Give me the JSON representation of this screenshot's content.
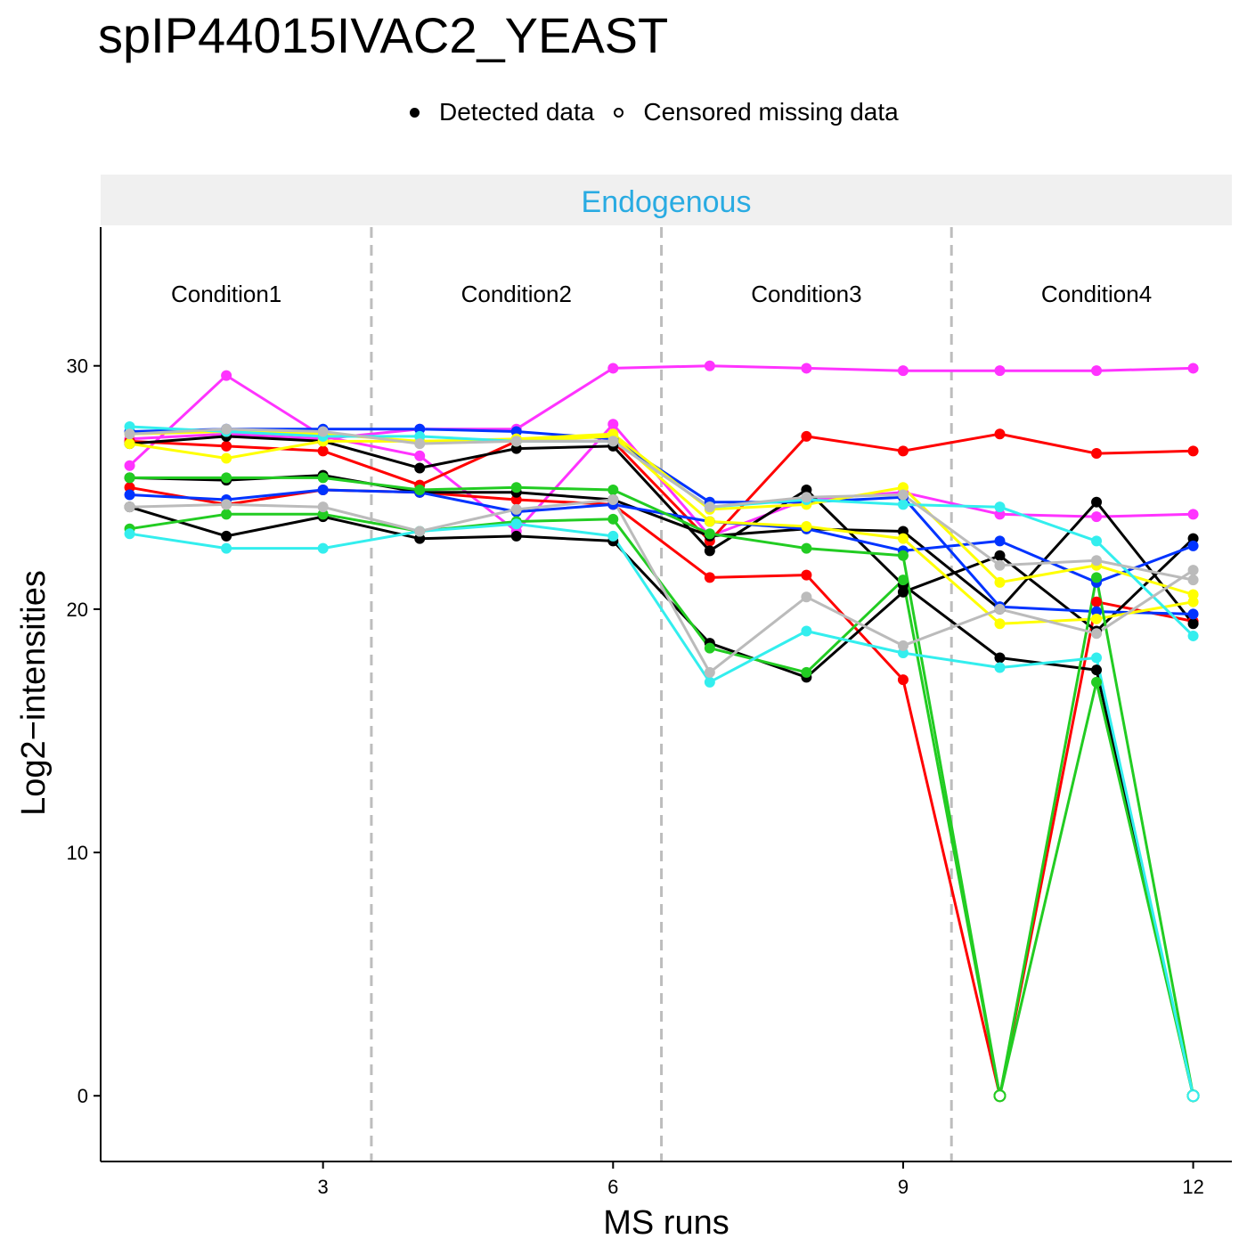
{
  "chart_data": {
    "type": "line",
    "title": "spIP44015IVAC2_YEAST",
    "legend": {
      "placement": "top",
      "detected_label": "Detected data",
      "censored_label": "Censored missing data"
    },
    "facet_label": "Endogenous",
    "facet_label_color": "#29abe2",
    "xlabel": "MS runs",
    "ylabel": "Log2−intensities",
    "xlim": [
      0.7,
      12.4
    ],
    "ylim": [
      -2.7,
      35.7
    ],
    "xticks": [
      3,
      6,
      9,
      12
    ],
    "yticks": [
      0,
      10,
      20,
      30
    ],
    "grid": false,
    "condition_separators": [
      3.5,
      6.5,
      9.5
    ],
    "conditions": [
      {
        "label": "Condition1",
        "x": 2.0
      },
      {
        "label": "Condition2",
        "x": 5.0
      },
      {
        "label": "Condition3",
        "x": 8.0
      },
      {
        "label": "Condition4",
        "x": 11.0
      }
    ],
    "x": [
      1,
      2,
      3,
      4,
      5,
      6,
      7,
      8,
      9,
      10,
      11,
      12
    ],
    "series": [
      {
        "color": "#ff33ff",
        "values": [
          25.9,
          29.6,
          27.1,
          26.3,
          23.2,
          27.6,
          23.0,
          24.5,
          24.8,
          23.9,
          23.8,
          23.9
        ],
        "censored": []
      },
      {
        "color": "#ff33ff",
        "values": [
          27.0,
          27.2,
          27.0,
          27.4,
          27.4,
          29.9,
          30.0,
          29.9,
          29.8,
          29.8,
          29.8,
          29.9
        ],
        "censored": []
      },
      {
        "color": "#ff0000",
        "values": [
          26.9,
          26.7,
          26.5,
          25.1,
          26.9,
          26.9,
          22.8,
          27.1,
          26.5,
          27.2,
          26.4,
          26.5
        ],
        "censored": []
      },
      {
        "color": "#ff0000",
        "values": [
          25.0,
          24.3,
          24.9,
          24.8,
          24.5,
          24.3,
          21.3,
          21.4,
          17.1,
          0.0,
          20.3,
          19.5
        ],
        "censored": [
          9
        ]
      },
      {
        "color": "#000000",
        "values": [
          26.8,
          27.1,
          26.9,
          25.8,
          26.6,
          26.7,
          22.4,
          24.9,
          21.0,
          18.0,
          17.5,
          0.0
        ],
        "censored": [
          11
        ]
      },
      {
        "color": "#000000",
        "values": [
          25.4,
          25.3,
          25.5,
          24.8,
          24.8,
          24.5,
          23.0,
          23.3,
          23.2,
          20.0,
          24.4,
          19.4
        ],
        "censored": []
      },
      {
        "color": "#000000",
        "values": [
          24.2,
          23.0,
          23.8,
          22.9,
          23.0,
          22.8,
          18.6,
          17.2,
          20.7,
          22.2,
          19.1,
          22.9
        ],
        "censored": []
      },
      {
        "color": "#0033ff",
        "values": [
          27.3,
          27.4,
          27.4,
          27.4,
          27.3,
          27.0,
          24.4,
          24.4,
          24.6,
          20.1,
          19.9,
          19.8
        ],
        "censored": []
      },
      {
        "color": "#0033ff",
        "values": [
          24.7,
          24.5,
          24.9,
          24.8,
          24.0,
          24.3,
          23.6,
          23.3,
          22.4,
          22.8,
          21.1,
          22.6
        ],
        "censored": []
      },
      {
        "color": "#ffff00",
        "values": [
          26.8,
          26.2,
          26.9,
          26.9,
          26.9,
          27.1,
          23.6,
          23.4,
          22.9,
          19.4,
          19.6,
          20.3
        ],
        "censored": []
      },
      {
        "color": "#ffff00",
        "values": [
          27.2,
          27.3,
          27.2,
          26.9,
          27.0,
          27.2,
          24.1,
          24.3,
          25.0,
          21.1,
          21.8,
          20.6
        ],
        "censored": []
      },
      {
        "color": "#22cc22",
        "values": [
          25.4,
          25.4,
          25.4,
          24.9,
          25.0,
          24.9,
          23.1,
          22.5,
          22.2,
          0.0,
          21.3,
          0.0
        ],
        "censored": [
          9,
          11
        ]
      },
      {
        "color": "#22cc22",
        "values": [
          23.3,
          23.9,
          23.9,
          23.2,
          23.6,
          23.7,
          18.4,
          17.4,
          21.2,
          0.0,
          17.0,
          0.0
        ],
        "censored": [
          9,
          11
        ]
      },
      {
        "color": "#33eeee",
        "values": [
          27.5,
          27.3,
          27.1,
          27.1,
          26.9,
          26.9,
          24.2,
          24.5,
          24.3,
          24.2,
          22.8,
          18.9
        ],
        "censored": []
      },
      {
        "color": "#33eeee",
        "values": [
          23.1,
          22.5,
          22.5,
          23.2,
          23.5,
          23.0,
          17.0,
          19.1,
          18.2,
          17.6,
          18.0,
          0.0
        ],
        "censored": [
          11
        ]
      },
      {
        "color": "#bbbbbb",
        "values": [
          27.2,
          27.4,
          27.3,
          26.8,
          26.9,
          26.9,
          24.2,
          24.6,
          24.7,
          21.8,
          22.0,
          21.2
        ],
        "censored": []
      },
      {
        "color": "#bbbbbb",
        "values": [
          24.2,
          24.3,
          24.2,
          23.2,
          24.1,
          24.5,
          17.4,
          20.5,
          18.5,
          20.0,
          19.0,
          21.6
        ],
        "censored": []
      }
    ]
  }
}
